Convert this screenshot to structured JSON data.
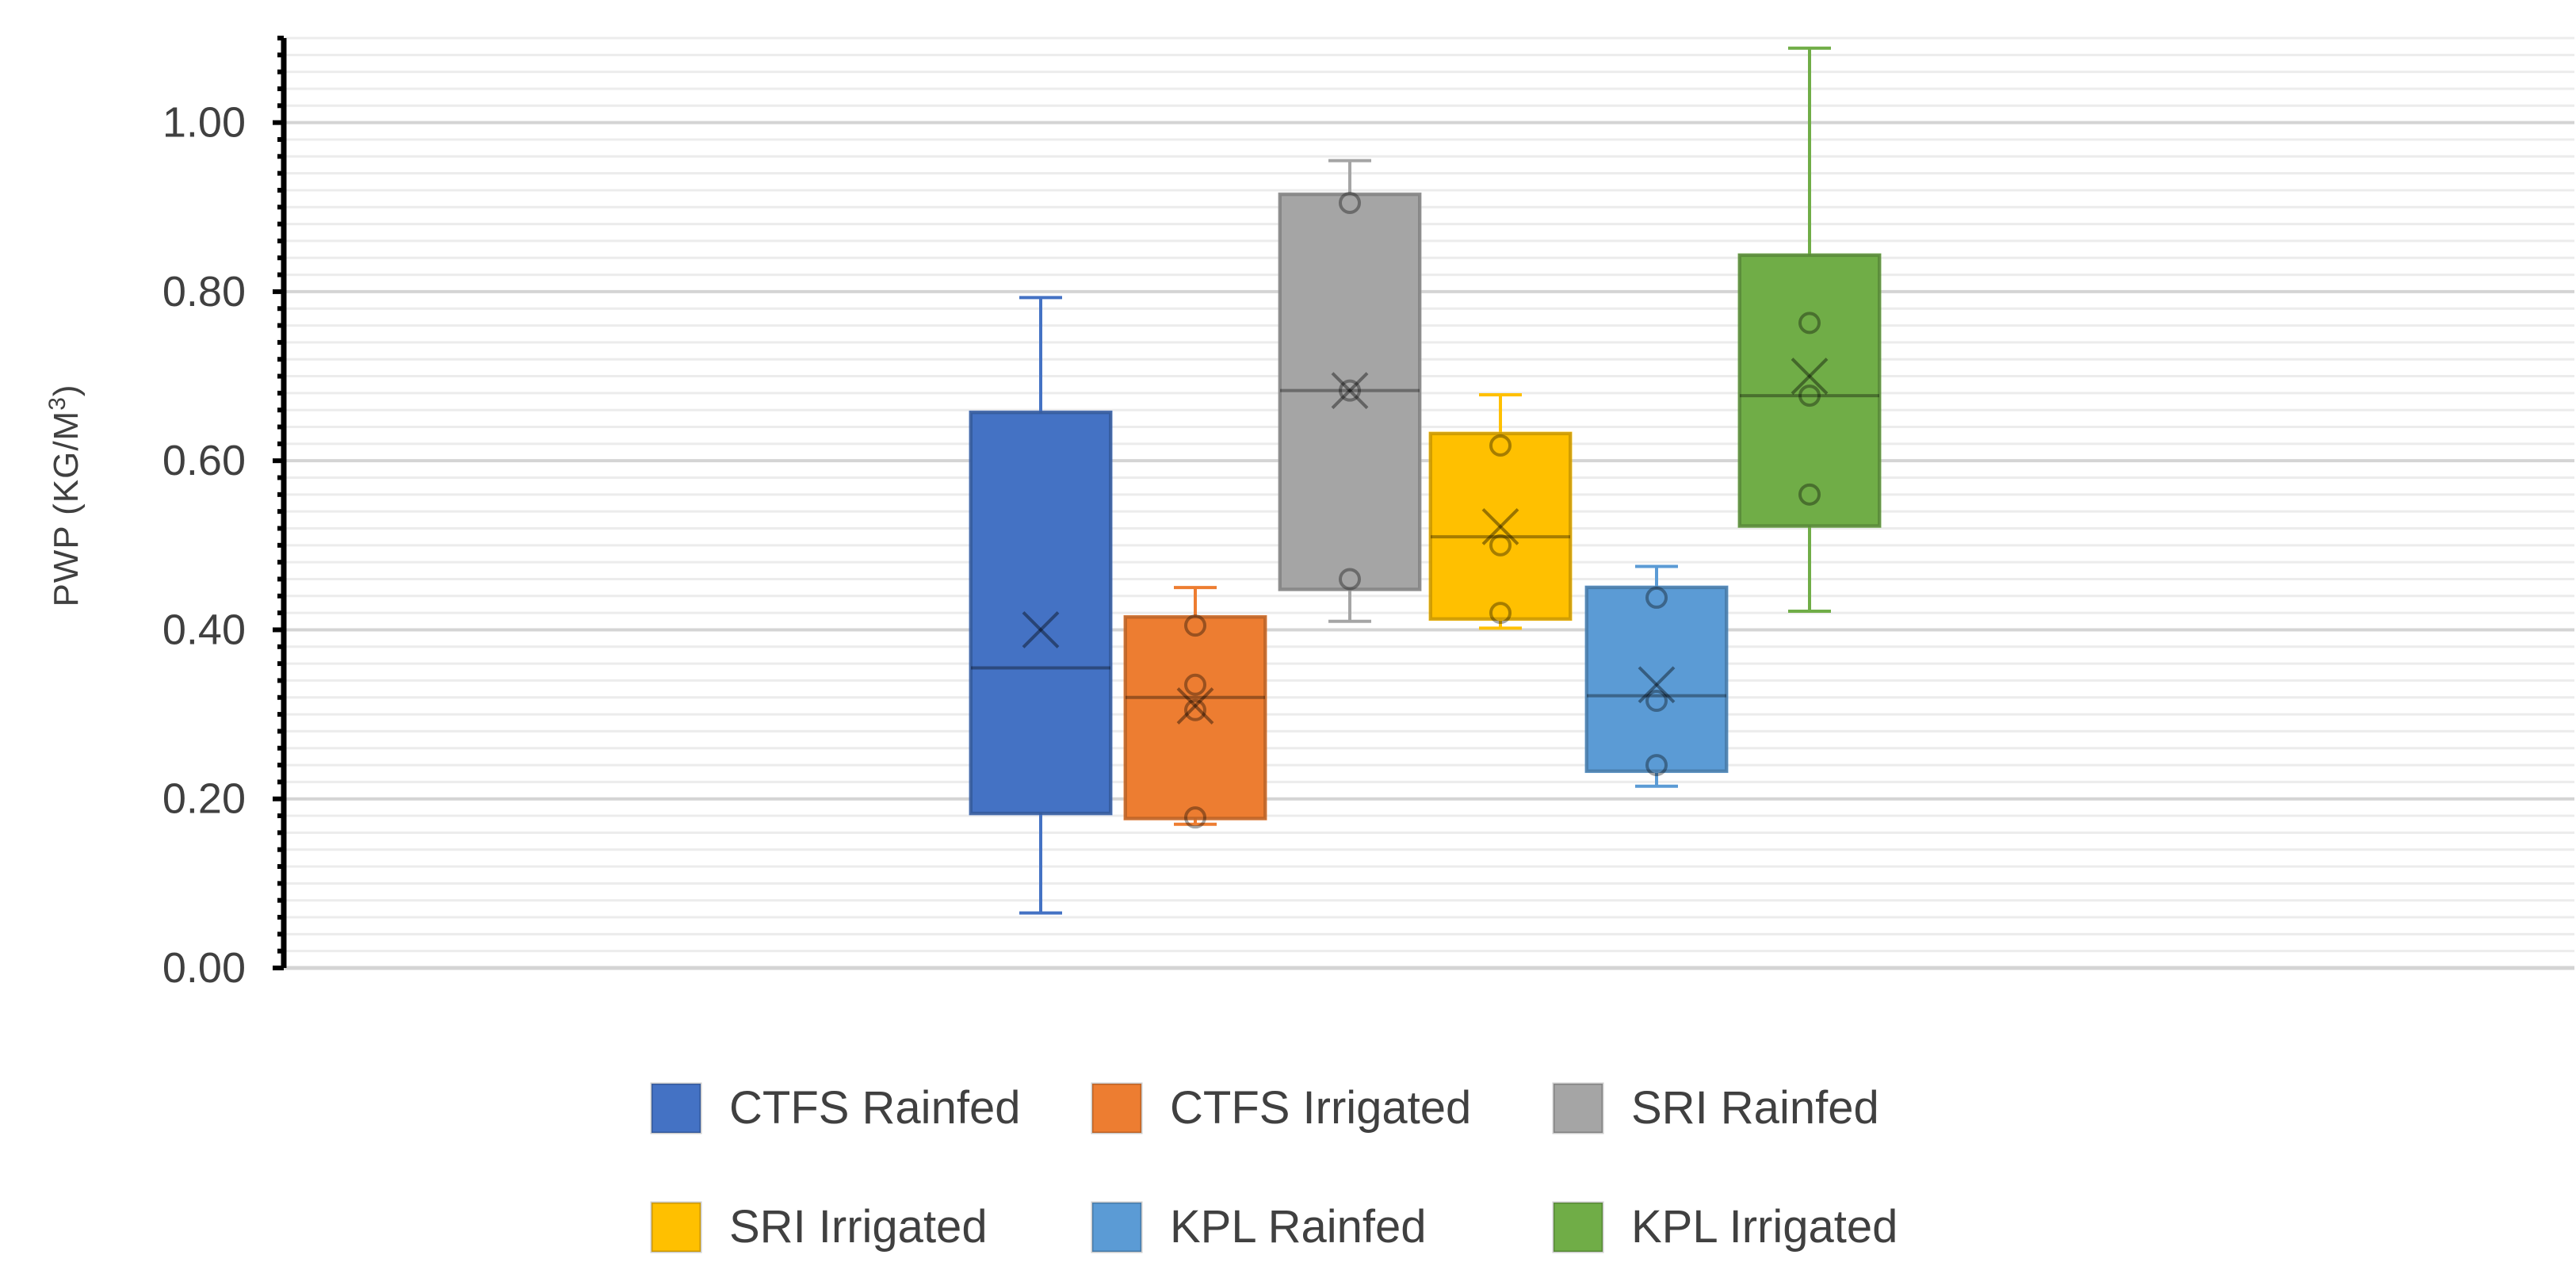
{
  "chart_data": {
    "type": "box",
    "title": "",
    "xlabel": "",
    "ylabel": "PWP (KG/M",
    "ylabel_superscript": "3",
    "ylabel_suffix": ")",
    "ylim": [
      0,
      1.1
    ],
    "y_ticks": [
      "0.00",
      "0.20",
      "0.40",
      "0.60",
      "0.80",
      "1.00"
    ],
    "y_tick_values": [
      0,
      0.2,
      0.4,
      0.6,
      0.8,
      1.0
    ],
    "grid": true,
    "legend_position": "bottom",
    "series": [
      {
        "name": "CTFS Rainfed",
        "color": "#4472C4",
        "min": 0.065,
        "q1": 0.183,
        "median": 0.355,
        "q3": 0.657,
        "max": 0.793,
        "mean": 0.4,
        "points": []
      },
      {
        "name": "CTFS Irrigated",
        "color": "#ED7D31",
        "min": 0.17,
        "q1": 0.177,
        "median": 0.32,
        "q3": 0.415,
        "max": 0.45,
        "mean": 0.31,
        "points": [
          0.178,
          0.305,
          0.335,
          0.405
        ]
      },
      {
        "name": "SRI Rainfed",
        "color": "#A5A5A5",
        "min": 0.41,
        "q1": 0.448,
        "median": 0.683,
        "q3": 0.915,
        "max": 0.955,
        "mean": 0.683,
        "points": [
          0.46,
          0.683,
          0.905
        ]
      },
      {
        "name": "SRI Irrigated",
        "color": "#FFC000",
        "min": 0.402,
        "q1": 0.413,
        "median": 0.51,
        "q3": 0.632,
        "max": 0.678,
        "mean": 0.522,
        "points": [
          0.42,
          0.5,
          0.618
        ]
      },
      {
        "name": "KPL Rainfed",
        "color": "#5B9BD5",
        "min": 0.215,
        "q1": 0.233,
        "median": 0.322,
        "q3": 0.45,
        "max": 0.475,
        "mean": 0.335,
        "points": [
          0.24,
          0.316,
          0.438
        ]
      },
      {
        "name": "KPL Irrigated",
        "color": "#70AD47",
        "min": 0.422,
        "q1": 0.523,
        "median": 0.677,
        "q3": 0.843,
        "max": 1.088,
        "mean": 0.7,
        "points": [
          0.56,
          0.677,
          0.763
        ]
      }
    ]
  }
}
